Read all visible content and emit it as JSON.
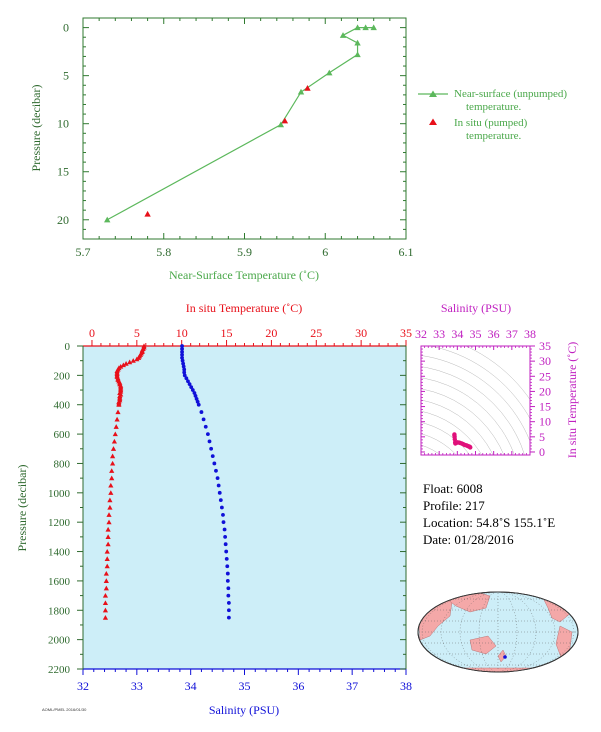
{
  "chart_data": [
    {
      "type": "line",
      "xlabel": "Near-Surface Temperature (˚C)",
      "ylabel": "Pressure (decibar)",
      "xlim": [
        5.7,
        6.1
      ],
      "ylim": [
        22,
        -1
      ],
      "xticks": [
        "5.7",
        "5.8",
        "5.9",
        "6",
        "6.1"
      ],
      "yticks": [
        "0",
        "5",
        "10",
        "15",
        "20"
      ],
      "legend_position": "right",
      "series": [
        {
          "name": "Near-surface (unpumped) temperature.",
          "color": "#5cb85c",
          "marker": "triangle",
          "points": [
            {
              "x": 6.06,
              "y": 0.0
            },
            {
              "x": 6.05,
              "y": 0.0
            },
            {
              "x": 6.04,
              "y": 0.0
            },
            {
              "x": 6.022,
              "y": 0.8
            },
            {
              "x": 6.04,
              "y": 1.6
            },
            {
              "x": 6.04,
              "y": 2.8
            },
            {
              "x": 6.005,
              "y": 4.7
            },
            {
              "x": 5.97,
              "y": 6.7
            },
            {
              "x": 5.945,
              "y": 10.1
            },
            {
              "x": 5.73,
              "y": 20.0
            }
          ]
        },
        {
          "name": "In situ (pumped) temperature.",
          "color": "#e8101a",
          "marker": "triangle",
          "points": [
            {
              "x": 5.978,
              "y": 6.3
            },
            {
              "x": 5.95,
              "y": 9.7
            },
            {
              "x": 5.78,
              "y": 19.4
            }
          ]
        }
      ]
    },
    {
      "type": "line",
      "xlabel_top": "In situ Temperature (˚C)",
      "xlabel_bottom": "Salinity (PSU)",
      "ylabel": "Pressure (decibar)",
      "xlim_temperature": [
        -1,
        35
      ],
      "xlim_salinity": [
        32,
        38
      ],
      "ylim": [
        2200,
        0
      ],
      "xticks_temperature": [
        "0",
        "5",
        "10",
        "15",
        "20",
        "25",
        "30",
        "35"
      ],
      "xticks_salinity": [
        "32",
        "33",
        "34",
        "35",
        "36",
        "37",
        "38"
      ],
      "yticks": [
        "0",
        "200",
        "400",
        "600",
        "800",
        "1000",
        "1200",
        "1400",
        "1600",
        "1800",
        "2000",
        "2200"
      ],
      "background": "#cdeef8",
      "series": [
        {
          "name": "In situ Temperature",
          "color": "#e8101a",
          "marker": "triangle",
          "axis": "temperature",
          "points": [
            {
              "p": 0,
              "v": 5.8
            },
            {
              "p": 10,
              "v": 5.8
            },
            {
              "p": 20,
              "v": 5.7
            },
            {
              "p": 30,
              "v": 5.6
            },
            {
              "p": 40,
              "v": 5.6
            },
            {
              "p": 50,
              "v": 5.5
            },
            {
              "p": 60,
              "v": 5.4
            },
            {
              "p": 70,
              "v": 5.3
            },
            {
              "p": 80,
              "v": 5.2
            },
            {
              "p": 90,
              "v": 5.0
            },
            {
              "p": 100,
              "v": 4.6
            },
            {
              "p": 110,
              "v": 4.2
            },
            {
              "p": 120,
              "v": 3.8
            },
            {
              "p": 130,
              "v": 3.5
            },
            {
              "p": 140,
              "v": 3.2
            },
            {
              "p": 150,
              "v": 3.0
            },
            {
              "p": 160,
              "v": 2.9
            },
            {
              "p": 170,
              "v": 2.8
            },
            {
              "p": 180,
              "v": 2.8
            },
            {
              "p": 190,
              "v": 2.8
            },
            {
              "p": 200,
              "v": 2.8
            },
            {
              "p": 210,
              "v": 2.8
            },
            {
              "p": 220,
              "v": 2.9
            },
            {
              "p": 230,
              "v": 2.9
            },
            {
              "p": 240,
              "v": 3.0
            },
            {
              "p": 250,
              "v": 3.1
            },
            {
              "p": 260,
              "v": 3.1
            },
            {
              "p": 270,
              "v": 3.2
            },
            {
              "p": 280,
              "v": 3.2
            },
            {
              "p": 290,
              "v": 3.2
            },
            {
              "p": 300,
              "v": 3.2
            },
            {
              "p": 310,
              "v": 3.2
            },
            {
              "p": 320,
              "v": 3.1
            },
            {
              "p": 330,
              "v": 3.2
            },
            {
              "p": 340,
              "v": 3.1
            },
            {
              "p": 350,
              "v": 3.1
            },
            {
              "p": 360,
              "v": 3.1
            },
            {
              "p": 370,
              "v": 3.1
            },
            {
              "p": 380,
              "v": 3.0
            },
            {
              "p": 390,
              "v": 3.0
            },
            {
              "p": 400,
              "v": 3.0
            },
            {
              "p": 450,
              "v": 2.9
            },
            {
              "p": 500,
              "v": 2.8
            },
            {
              "p": 550,
              "v": 2.7
            },
            {
              "p": 600,
              "v": 2.6
            },
            {
              "p": 650,
              "v": 2.5
            },
            {
              "p": 700,
              "v": 2.4
            },
            {
              "p": 750,
              "v": 2.3
            },
            {
              "p": 800,
              "v": 2.3
            },
            {
              "p": 850,
              "v": 2.2
            },
            {
              "p": 900,
              "v": 2.2
            },
            {
              "p": 950,
              "v": 2.1
            },
            {
              "p": 1000,
              "v": 2.1
            },
            {
              "p": 1050,
              "v": 2.0
            },
            {
              "p": 1100,
              "v": 2.0
            },
            {
              "p": 1150,
              "v": 1.9
            },
            {
              "p": 1200,
              "v": 1.9
            },
            {
              "p": 1250,
              "v": 1.8
            },
            {
              "p": 1300,
              "v": 1.8
            },
            {
              "p": 1350,
              "v": 1.8
            },
            {
              "p": 1400,
              "v": 1.7
            },
            {
              "p": 1450,
              "v": 1.7
            },
            {
              "p": 1500,
              "v": 1.7
            },
            {
              "p": 1550,
              "v": 1.6
            },
            {
              "p": 1600,
              "v": 1.6
            },
            {
              "p": 1650,
              "v": 1.6
            },
            {
              "p": 1700,
              "v": 1.5
            },
            {
              "p": 1750,
              "v": 1.5
            },
            {
              "p": 1800,
              "v": 1.5
            },
            {
              "p": 1850,
              "v": 1.5
            }
          ]
        },
        {
          "name": "Salinity",
          "color": "#1010d8",
          "marker": "dot",
          "axis": "salinity",
          "points": [
            {
              "p": 0,
              "v": 33.84
            },
            {
              "p": 20,
              "v": 33.84
            },
            {
              "p": 40,
              "v": 33.84
            },
            {
              "p": 60,
              "v": 33.84
            },
            {
              "p": 80,
              "v": 33.84
            },
            {
              "p": 100,
              "v": 33.85
            },
            {
              "p": 120,
              "v": 33.86
            },
            {
              "p": 140,
              "v": 33.87
            },
            {
              "p": 160,
              "v": 33.88
            },
            {
              "p": 180,
              "v": 33.88
            },
            {
              "p": 200,
              "v": 33.89
            },
            {
              "p": 220,
              "v": 33.92
            },
            {
              "p": 240,
              "v": 33.95
            },
            {
              "p": 260,
              "v": 33.98
            },
            {
              "p": 280,
              "v": 34.01
            },
            {
              "p": 300,
              "v": 34.04
            },
            {
              "p": 320,
              "v": 34.07
            },
            {
              "p": 340,
              "v": 34.09
            },
            {
              "p": 360,
              "v": 34.11
            },
            {
              "p": 380,
              "v": 34.13
            },
            {
              "p": 400,
              "v": 34.15
            },
            {
              "p": 450,
              "v": 34.2
            },
            {
              "p": 500,
              "v": 34.24
            },
            {
              "p": 550,
              "v": 34.28
            },
            {
              "p": 600,
              "v": 34.32
            },
            {
              "p": 650,
              "v": 34.35
            },
            {
              "p": 700,
              "v": 34.38
            },
            {
              "p": 750,
              "v": 34.41
            },
            {
              "p": 800,
              "v": 34.44
            },
            {
              "p": 850,
              "v": 34.47
            },
            {
              "p": 900,
              "v": 34.5
            },
            {
              "p": 950,
              "v": 34.52
            },
            {
              "p": 1000,
              "v": 34.54
            },
            {
              "p": 1050,
              "v": 34.56
            },
            {
              "p": 1100,
              "v": 34.58
            },
            {
              "p": 1150,
              "v": 34.6
            },
            {
              "p": 1200,
              "v": 34.61
            },
            {
              "p": 1250,
              "v": 34.63
            },
            {
              "p": 1300,
              "v": 34.64
            },
            {
              "p": 1350,
              "v": 34.65
            },
            {
              "p": 1400,
              "v": 34.66
            },
            {
              "p": 1450,
              "v": 34.67
            },
            {
              "p": 1500,
              "v": 34.68
            },
            {
              "p": 1550,
              "v": 34.69
            },
            {
              "p": 1600,
              "v": 34.69
            },
            {
              "p": 1650,
              "v": 34.7
            },
            {
              "p": 1700,
              "v": 34.7
            },
            {
              "p": 1750,
              "v": 34.71
            },
            {
              "p": 1800,
              "v": 34.71
            },
            {
              "p": 1850,
              "v": 34.71
            }
          ]
        }
      ]
    },
    {
      "type": "scatter",
      "xlabel": "Salinity (PSU)",
      "ylabel": "In situ Temperature (˚C)",
      "xlim": [
        32,
        38
      ],
      "ylim": [
        -1,
        35
      ],
      "xticks": [
        "32",
        "33",
        "34",
        "35",
        "36",
        "37",
        "38"
      ],
      "yticks": [
        "0",
        "5",
        "10",
        "15",
        "20",
        "25",
        "30",
        "35"
      ],
      "color": "#e0107a",
      "background_contours": true,
      "points": [
        {
          "s": 33.84,
          "t": 5.8
        },
        {
          "s": 33.84,
          "t": 5.5
        },
        {
          "s": 33.85,
          "t": 5.0
        },
        {
          "s": 33.86,
          "t": 4.2
        },
        {
          "s": 33.88,
          "t": 3.2
        },
        {
          "s": 33.89,
          "t": 2.8
        },
        {
          "s": 33.95,
          "t": 3.0
        },
        {
          "s": 34.01,
          "t": 3.2
        },
        {
          "s": 34.09,
          "t": 3.1
        },
        {
          "s": 34.15,
          "t": 3.0
        },
        {
          "s": 34.24,
          "t": 2.8
        },
        {
          "s": 34.32,
          "t": 2.6
        },
        {
          "s": 34.41,
          "t": 2.3
        },
        {
          "s": 34.5,
          "t": 2.2
        },
        {
          "s": 34.56,
          "t": 2.0
        },
        {
          "s": 34.61,
          "t": 1.9
        },
        {
          "s": 34.65,
          "t": 1.8
        },
        {
          "s": 34.68,
          "t": 1.7
        },
        {
          "s": 34.7,
          "t": 1.6
        },
        {
          "s": 34.71,
          "t": 1.5
        }
      ]
    }
  ],
  "float_info": {
    "float": "Float:  6008",
    "profile": "Profile:  217",
    "location": "Location:  54.8˚S  155.1˚E",
    "date": "Date:  01/28/2016"
  },
  "map": {
    "ocean_color": "#cdeef8",
    "land_color": "#f4a8a8",
    "marker_color": "#1010d8"
  },
  "footer_note": "AOML/PMEL 2016/01/30"
}
